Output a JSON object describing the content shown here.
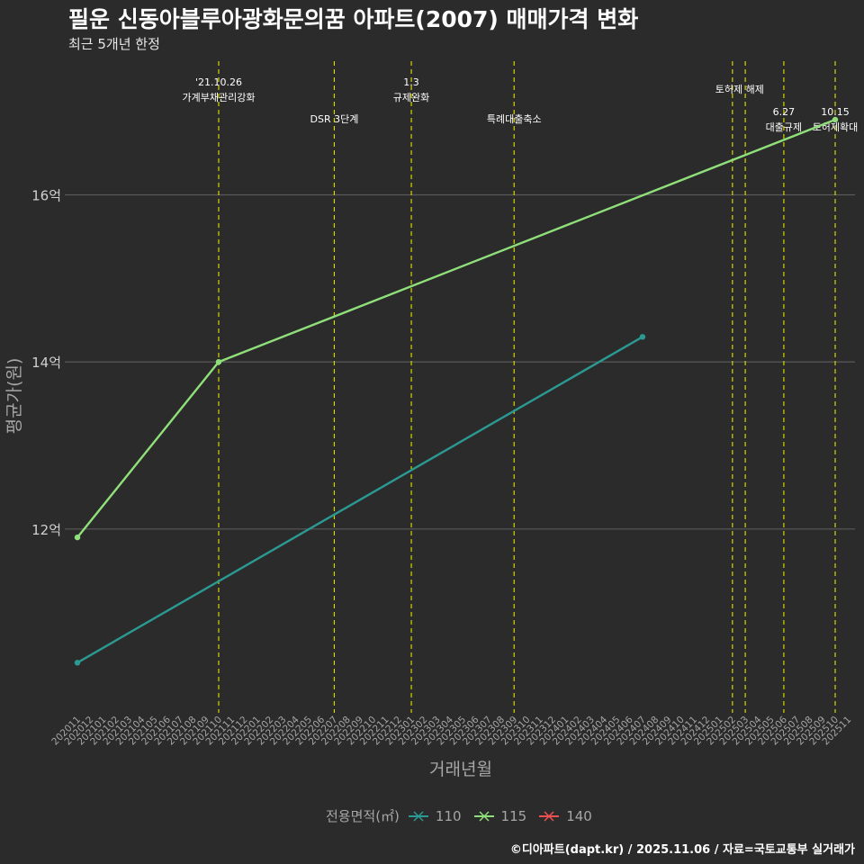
{
  "chart_data": {
    "type": "line",
    "title": "필운 신동아블루아광화문의꿈 아파트(2007) 매매가격 변화",
    "subtitle": "최근 5개년 한정",
    "xlabel": "거래년월",
    "ylabel": "평균가(원)",
    "caption": "©디아파트(dapt.kr) / 2025.11.06 / 자료=국토교통부 실거래가",
    "legend_title": "전용면적(㎡)",
    "legend_position": "bottom",
    "y_ticks": [
      {
        "value": 12,
        "label": "12억"
      },
      {
        "value": 14,
        "label": "14억"
      },
      {
        "value": 16,
        "label": "16억"
      }
    ],
    "ylim": [
      9.8,
      17.6
    ],
    "x_categories": [
      "202011",
      "202012",
      "202101",
      "202102",
      "202103",
      "202104",
      "202105",
      "202106",
      "202107",
      "202108",
      "202109",
      "202110",
      "202111",
      "202112",
      "202201",
      "202202",
      "202203",
      "202204",
      "202205",
      "202206",
      "202207",
      "202208",
      "202209",
      "202210",
      "202211",
      "202212",
      "202301",
      "202302",
      "202303",
      "202304",
      "202305",
      "202306",
      "202307",
      "202308",
      "202309",
      "202310",
      "202311",
      "202312",
      "202401",
      "202402",
      "202403",
      "202404",
      "202405",
      "202406",
      "202407",
      "202408",
      "202409",
      "202410",
      "202411",
      "202412",
      "202501",
      "202502",
      "202503",
      "202504",
      "202505",
      "202506",
      "202507",
      "202508",
      "202509",
      "202510",
      "202511"
    ],
    "series": [
      {
        "name": "110",
        "color": "#2a9a93",
        "points": [
          {
            "x": "202011",
            "y": 10.4
          },
          {
            "x": "202407",
            "y": 14.3
          }
        ]
      },
      {
        "name": "115",
        "color": "#8fe07a",
        "points": [
          {
            "x": "202011",
            "y": 11.9
          },
          {
            "x": "202110",
            "y": 14.0
          },
          {
            "x": "202510",
            "y": 16.9
          }
        ]
      },
      {
        "name": "140",
        "color": "#f0504f",
        "points": []
      }
    ],
    "events": [
      {
        "x": "202110",
        "label": "'21.10.26\n가계부채관리강화",
        "row": 0
      },
      {
        "x": "202207",
        "label": "DSR 3단계",
        "row": 1
      },
      {
        "x": "202301",
        "label": "1.3\n규제완화",
        "row": 0
      },
      {
        "x": "202309",
        "label": "특례대출축소",
        "row": 1
      },
      {
        "x": "202502",
        "label": "토허제 해제",
        "row": 0,
        "anchor": "right"
      },
      {
        "x": "202503",
        "label": "",
        "row": 0
      },
      {
        "x": "202506",
        "label": "6.27\n대출규제",
        "row": 2
      },
      {
        "x": "202510",
        "label": "10.15\n토허제확대",
        "row": 2
      }
    ],
    "colors": {
      "background": "#2b2b2b",
      "grid": "#5a5a5a",
      "event_line": "#d4d400",
      "axis_text": "#a6a6a6"
    }
  }
}
